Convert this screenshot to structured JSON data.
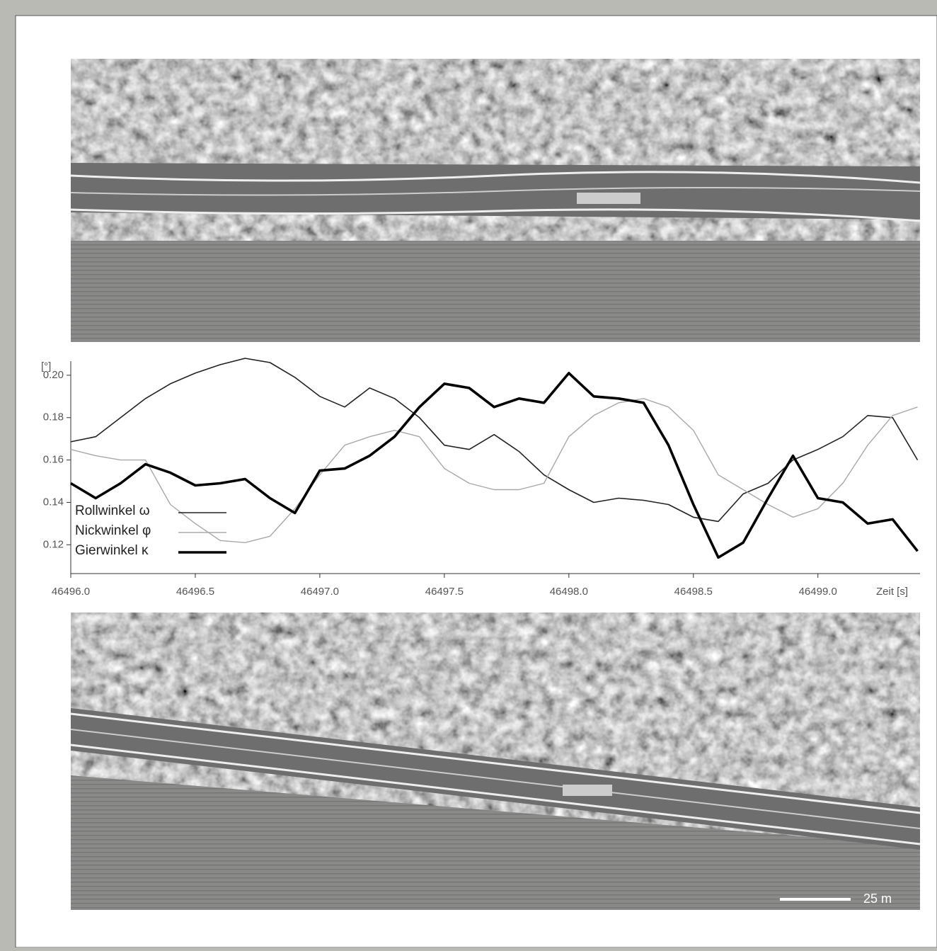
{
  "chart_data": {
    "type": "line",
    "y_label": "[°]",
    "x_label": "Zeit [s]",
    "x": [
      46496.0,
      46496.1,
      46496.2,
      46496.3,
      46496.4,
      46496.5,
      46496.6,
      46496.7,
      46496.8,
      46496.9,
      46497.0,
      46497.1,
      46497.2,
      46497.3,
      46497.4,
      46497.5,
      46497.6,
      46497.7,
      46497.8,
      46497.9,
      46498.0,
      46498.1,
      46498.2,
      46498.3,
      46498.4,
      46498.5,
      46498.6,
      46498.7,
      46498.8,
      46498.9,
      46499.0,
      46499.1,
      46499.2,
      46499.3,
      46499.4
    ],
    "series": [
      {
        "name": "Rollwinkel ω",
        "color": "#222222",
        "line_width": 1.6,
        "values": [
          0.1686,
          0.171,
          0.18,
          0.189,
          0.196,
          0.201,
          0.205,
          0.208,
          0.206,
          0.199,
          0.19,
          0.185,
          0.194,
          0.189,
          0.18,
          0.167,
          0.165,
          0.172,
          0.164,
          0.153,
          0.146,
          0.14,
          0.142,
          0.141,
          0.139,
          0.133,
          0.131,
          0.144,
          0.149,
          0.16,
          0.165,
          0.171,
          0.181,
          0.18,
          0.16
        ]
      },
      {
        "name": "Nickwinkel φ",
        "color": "#a8a8a8",
        "line_width": 1.4,
        "values": [
          0.165,
          0.162,
          0.16,
          0.16,
          0.139,
          0.13,
          0.122,
          0.121,
          0.124,
          0.137,
          0.153,
          0.167,
          0.171,
          0.174,
          0.171,
          0.156,
          0.149,
          0.146,
          0.146,
          0.149,
          0.171,
          0.181,
          0.187,
          0.189,
          0.185,
          0.174,
          0.153,
          0.146,
          0.139,
          0.133,
          0.137,
          0.149,
          0.167,
          0.181,
          0.185
        ]
      },
      {
        "name": "Gierwinkel κ",
        "color": "#000000",
        "line_width": 3.6,
        "values": [
          0.149,
          0.142,
          0.149,
          0.158,
          0.154,
          0.148,
          0.149,
          0.151,
          0.142,
          0.135,
          0.155,
          0.156,
          0.162,
          0.171,
          0.185,
          0.196,
          0.194,
          0.185,
          0.189,
          0.187,
          0.201,
          0.19,
          0.189,
          0.187,
          0.167,
          0.139,
          0.114,
          0.121,
          0.142,
          0.162,
          0.142,
          0.14,
          0.13,
          0.132,
          0.117
        ]
      }
    ],
    "xlim": [
      46496.0,
      46499.41
    ],
    "xticks": [
      {
        "value": 46496,
        "label": "46496.0"
      },
      46496.5,
      {
        "value": 46497,
        "label": "46497.0"
      },
      46497.5,
      {
        "value": 46498,
        "label": "46498.0"
      },
      46498.5,
      {
        "value": 46499,
        "label": "46499.0"
      }
    ],
    "ylim": [
      0.1064,
      0.21
    ],
    "yticks": [
      0.12,
      0.14,
      0.16,
      0.18,
      {
        "value": 0.2,
        "label": "0.20"
      }
    ],
    "grid": false,
    "legend": "lower left"
  },
  "image": {
    "scale_label": "25 m"
  }
}
